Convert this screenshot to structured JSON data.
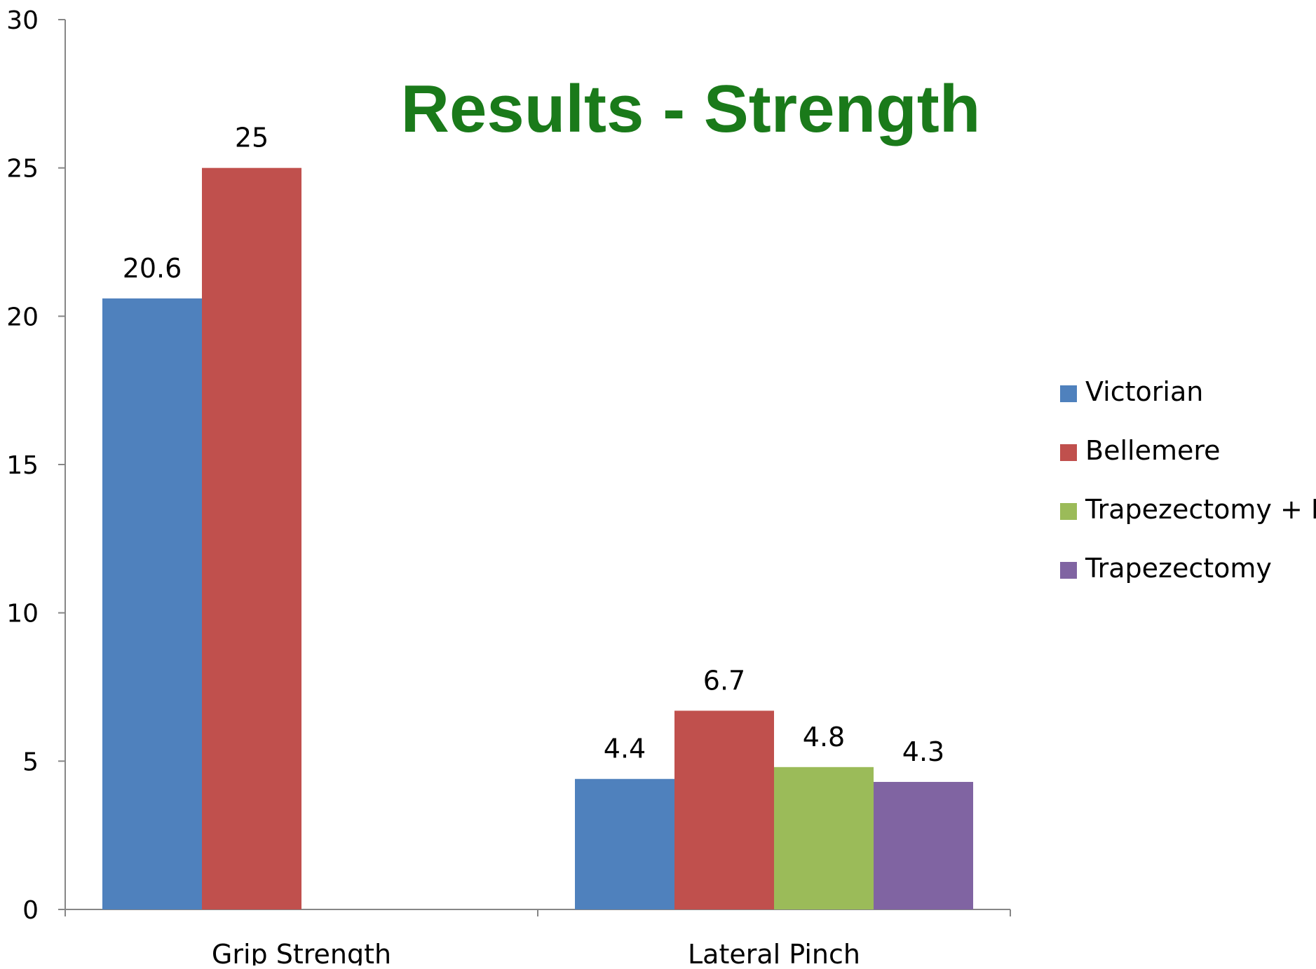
{
  "chart_data": {
    "type": "bar",
    "title": "Results - Strength",
    "xlabel": "",
    "ylabel": "",
    "categories": [
      "Grip Strength",
      "Lateral Pinch"
    ],
    "series": [
      {
        "name": "Victorian",
        "values": [
          20.6,
          4.4
        ]
      },
      {
        "name": "Bellemere",
        "values": [
          25,
          6.7
        ]
      },
      {
        "name": "Trapezectomy + IA",
        "values": [
          null,
          4.8
        ]
      },
      {
        "name": "Trapezectomy",
        "values": [
          null,
          4.3
        ]
      }
    ],
    "data_labels": [
      [
        "20.6",
        "4.4"
      ],
      [
        "25",
        "6.7"
      ],
      [
        null,
        "4.8"
      ],
      [
        null,
        "4.3"
      ]
    ],
    "ylim": [
      0,
      30
    ],
    "yticks": [
      0,
      5,
      10,
      15,
      20,
      25,
      30
    ],
    "grid": false,
    "legend_position": "right",
    "colors": {
      "Victorian": "#4f81bd",
      "Bellemere": "#c0504d",
      "Trapezectomy + IA": "#9bbb59",
      "Trapezectomy": "#8064a2",
      "title": "#1a7a1a",
      "axis": "#868686",
      "text": "#000000"
    }
  }
}
